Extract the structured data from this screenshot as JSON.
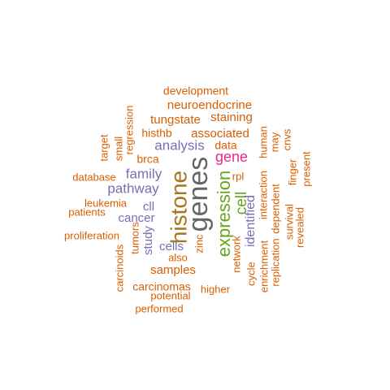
{
  "palette": {
    "orange": "#d95f02",
    "purple": "#7570b3",
    "magenta": "#e7298a",
    "green": "#66a61e",
    "olive": "#a6761d",
    "gray": "#666666"
  },
  "words": [
    {
      "text": "genes",
      "color": "gray"
    },
    {
      "text": "histone",
      "color": "olive"
    },
    {
      "text": "expression",
      "color": "green"
    },
    {
      "text": "cell",
      "color": "green"
    },
    {
      "text": "gene",
      "color": "magenta"
    },
    {
      "text": "analysis",
      "color": "purple"
    },
    {
      "text": "family",
      "color": "purple"
    },
    {
      "text": "pathway",
      "color": "purple"
    },
    {
      "text": "identified",
      "color": "purple"
    },
    {
      "text": "cancer",
      "color": "purple"
    },
    {
      "text": "cells",
      "color": "purple"
    },
    {
      "text": "study",
      "color": "purple"
    },
    {
      "text": "cll",
      "color": "purple"
    },
    {
      "text": "samples",
      "color": "orange"
    },
    {
      "text": "staining",
      "color": "orange"
    },
    {
      "text": "associated",
      "color": "orange"
    },
    {
      "text": "tungstate",
      "color": "orange"
    },
    {
      "text": "neuroendocrine",
      "color": "orange"
    },
    {
      "text": "development",
      "color": "orange"
    },
    {
      "text": "histhb",
      "color": "orange"
    },
    {
      "text": "data",
      "color": "orange"
    },
    {
      "text": "brca",
      "color": "orange"
    },
    {
      "text": "regression",
      "color": "orange"
    },
    {
      "text": "small",
      "color": "orange"
    },
    {
      "text": "target",
      "color": "orange"
    },
    {
      "text": "database",
      "color": "orange"
    },
    {
      "text": "leukemia",
      "color": "orange"
    },
    {
      "text": "patients",
      "color": "orange"
    },
    {
      "text": "proliferation",
      "color": "orange"
    },
    {
      "text": "tumors",
      "color": "orange"
    },
    {
      "text": "carcinoids",
      "color": "orange"
    },
    {
      "text": "carcinomas",
      "color": "orange"
    },
    {
      "text": "potential",
      "color": "orange"
    },
    {
      "text": "performed",
      "color": "orange"
    },
    {
      "text": "higher",
      "color": "orange"
    },
    {
      "text": "also",
      "color": "orange"
    },
    {
      "text": "zinc",
      "color": "orange"
    },
    {
      "text": "network",
      "color": "orange"
    },
    {
      "text": "cycle",
      "color": "orange"
    },
    {
      "text": "rpl",
      "color": "orange"
    },
    {
      "text": "enrichment",
      "color": "orange"
    },
    {
      "text": "interaction",
      "color": "orange"
    },
    {
      "text": "human",
      "color": "orange"
    },
    {
      "text": "replication",
      "color": "orange"
    },
    {
      "text": "dependent",
      "color": "orange"
    },
    {
      "text": "may",
      "color": "orange"
    },
    {
      "text": "survival",
      "color": "orange"
    },
    {
      "text": "cnvs",
      "color": "orange"
    },
    {
      "text": "finger",
      "color": "orange"
    },
    {
      "text": "revealed",
      "color": "orange"
    },
    {
      "text": "present",
      "color": "orange"
    }
  ]
}
